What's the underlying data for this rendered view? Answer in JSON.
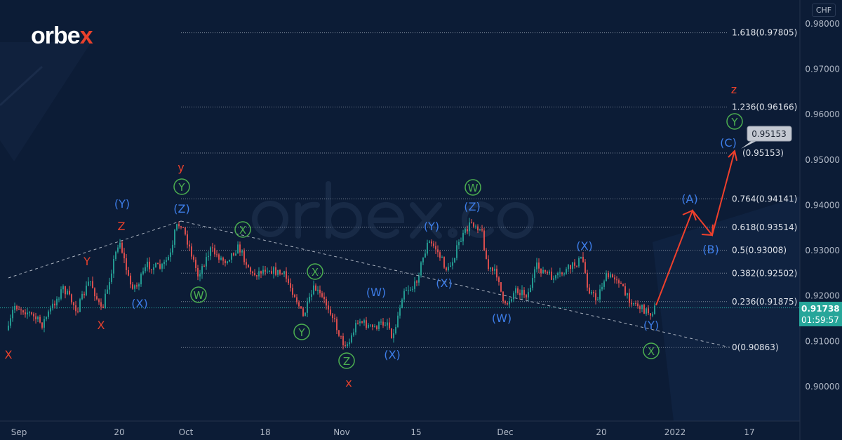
{
  "brand": {
    "logo_main": "orbe",
    "logo_accent": "x",
    "watermark": "orbex.com"
  },
  "colors": {
    "background": "#0c1c36",
    "up": "#26a69a",
    "down": "#ef5350",
    "wave_red": "#e8412c",
    "wave_blue": "#3d7de8",
    "wave_green": "#4caf50",
    "projection": "#f0402c"
  },
  "chart_data": {
    "type": "candlestick",
    "symbol_currency": "CHF",
    "ylim": [
      0.895,
      0.985
    ],
    "y_ticks": [
      "0.98000",
      "0.97000",
      "0.96000",
      "0.95000",
      "0.94000",
      "0.93000",
      "0.92000",
      "0.91000",
      "0.90000"
    ],
    "x_ticks": [
      "Sep",
      "20",
      "Oct",
      "18",
      "Nov",
      "15",
      "Dec",
      "20",
      "2022",
      "17"
    ],
    "last_price": "0.91738",
    "countdown": "01:59:57",
    "fib_levels": [
      {
        "ratio": "1.618",
        "price": 0.97805,
        "label": "1.618(0.97805)"
      },
      {
        "ratio": "1.236",
        "price": 0.96166,
        "label": "1.236(0.96166)"
      },
      {
        "ratio": "",
        "price": 0.95153,
        "label": "(0.95153)"
      },
      {
        "ratio": "0.764",
        "price": 0.94141,
        "label": "0.764(0.94141)"
      },
      {
        "ratio": "0.618",
        "price": 0.93514,
        "label": "0.618(0.93514)"
      },
      {
        "ratio": "0.5",
        "price": 0.93008,
        "label": "0.5(0.93008)"
      },
      {
        "ratio": "0.382",
        "price": 0.92502,
        "label": "0.382(0.92502)"
      },
      {
        "ratio": "0.236",
        "price": 0.91875,
        "label": "0.236(0.91875)"
      },
      {
        "ratio": "0",
        "price": 0.90863,
        "label": "0(0.90863)"
      }
    ],
    "target_callout": "0.95153",
    "wave_labels": [
      {
        "text": "X",
        "color": "red"
      },
      {
        "text": "X",
        "color": "red"
      },
      {
        "text": "Y",
        "color": "red"
      },
      {
        "text": "Z",
        "color": "red"
      },
      {
        "text": "y",
        "color": "red"
      },
      {
        "text": "x",
        "color": "red"
      },
      {
        "text": "z",
        "color": "red"
      },
      {
        "text": "(Y)",
        "color": "blue"
      },
      {
        "text": "(X)",
        "color": "blue"
      },
      {
        "text": "(Z)",
        "color": "blue"
      },
      {
        "text": "(W)",
        "color": "blue"
      },
      {
        "text": "(X)",
        "color": "blue"
      },
      {
        "text": "(Y)",
        "color": "blue"
      },
      {
        "text": "(X)",
        "color": "blue"
      },
      {
        "text": "(Z)",
        "color": "blue"
      },
      {
        "text": "(W)",
        "color": "blue"
      },
      {
        "text": "(X)",
        "color": "blue"
      },
      {
        "text": "(Y)",
        "color": "blue"
      },
      {
        "text": "(A)",
        "color": "blue"
      },
      {
        "text": "(B)",
        "color": "blue"
      },
      {
        "text": "(C)",
        "color": "blue"
      },
      {
        "text": "Y",
        "color": "green"
      },
      {
        "text": "W",
        "color": "green"
      },
      {
        "text": "X",
        "color": "green"
      },
      {
        "text": "X",
        "color": "green"
      },
      {
        "text": "Y",
        "color": "green"
      },
      {
        "text": "Z",
        "color": "green"
      },
      {
        "text": "W",
        "color": "green"
      },
      {
        "text": "X",
        "color": "green"
      },
      {
        "text": "Y",
        "color": "green"
      }
    ]
  }
}
